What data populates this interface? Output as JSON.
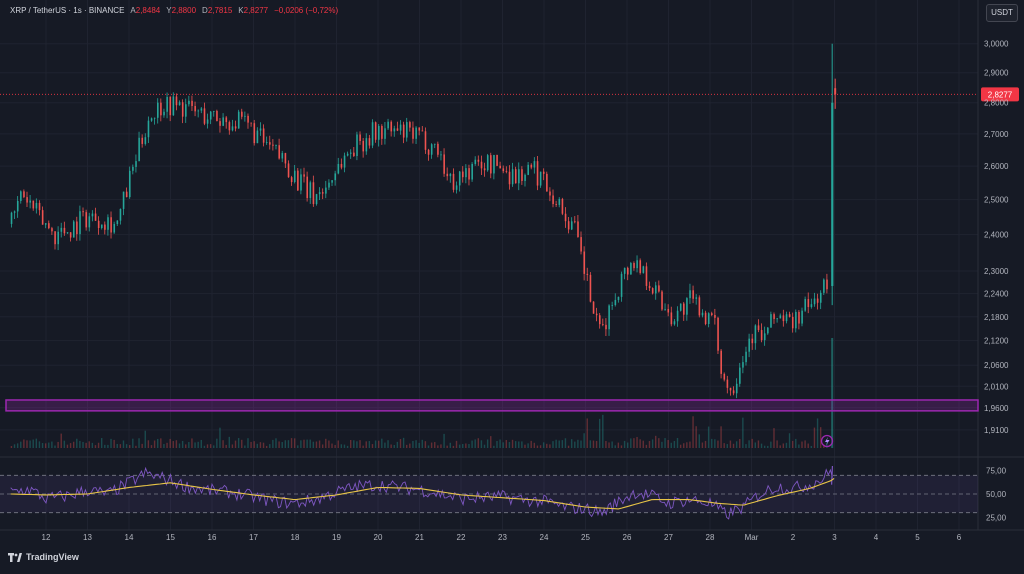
{
  "header": {
    "symbol": "XRP / TetherUS · 1s · BINANCE",
    "open_label": "A",
    "open_value": "2,8484",
    "high_label": "Y",
    "high_value": "2,8800",
    "low_label": "D",
    "low_value": "2,7815",
    "close_label": "K",
    "close_value": "2,8277",
    "change": "−0,0206 (−0,72%)"
  },
  "currency_button": "USDT",
  "brand": {
    "name": "TradingView"
  },
  "colors": {
    "background": "#161a25",
    "bull": "#26a69a",
    "bear": "#ef5350",
    "support_band": "#9c27b0",
    "rsi_line": "#7e57c2",
    "rsi_ma": "#e8c547",
    "grid": "#1f2330",
    "price_tag": "#f23645"
  },
  "chart_data": {
    "type": "candlestick",
    "symbol": "XRP / TetherUS",
    "interval": "1s",
    "exchange": "BINANCE",
    "current_price": "2,8277",
    "price_axis": {
      "scale": "log",
      "range": [
        1.87,
        3.07
      ],
      "ticks": [
        1.91,
        1.96,
        2.01,
        2.06,
        2.12,
        2.18,
        2.24,
        2.3,
        2.4,
        2.5,
        2.6,
        2.7,
        2.8,
        2.9,
        3.0
      ],
      "tick_labels": [
        "1,9100",
        "1,9600",
        "2,0100",
        "2,0600",
        "2,1200",
        "2,1800",
        "2,2400",
        "2,3000",
        "2,4000",
        "2,5000",
        "2,6000",
        "2,7000",
        "2,8000",
        "2,9000",
        "3,0000"
      ]
    },
    "time_axis": {
      "tick_labels": [
        "12",
        "13",
        "14",
        "15",
        "16",
        "17",
        "18",
        "19",
        "20",
        "21",
        "22",
        "23",
        "24",
        "25",
        "26",
        "27",
        "28",
        "Mar",
        "2",
        "3",
        "4",
        "5",
        "6"
      ],
      "tick_days": [
        12,
        13,
        14,
        15,
        16,
        17,
        18,
        19,
        20,
        21,
        22,
        23,
        24,
        25,
        26,
        27,
        28,
        29,
        30,
        31,
        32,
        33,
        34
      ]
    },
    "price_path": [
      [
        11.15,
        2.43
      ],
      [
        11.4,
        2.52
      ],
      [
        11.8,
        2.45
      ],
      [
        12.2,
        2.4
      ],
      [
        12.6,
        2.42
      ],
      [
        12.9,
        2.45
      ],
      [
        13.3,
        2.45
      ],
      [
        13.7,
        2.43
      ],
      [
        14.1,
        2.6
      ],
      [
        14.45,
        2.75
      ],
      [
        14.8,
        2.8
      ],
      [
        15.2,
        2.79
      ],
      [
        15.6,
        2.77
      ],
      [
        16.0,
        2.75
      ],
      [
        16.5,
        2.74
      ],
      [
        16.9,
        2.72
      ],
      [
        17.3,
        2.66
      ],
      [
        17.7,
        2.62
      ],
      [
        18.1,
        2.55
      ],
      [
        18.4,
        2.51
      ],
      [
        18.7,
        2.53
      ],
      [
        19.0,
        2.6
      ],
      [
        19.4,
        2.66
      ],
      [
        19.8,
        2.7
      ],
      [
        20.2,
        2.71
      ],
      [
        20.7,
        2.7
      ],
      [
        21.1,
        2.68
      ],
      [
        21.45,
        2.65
      ],
      [
        21.7,
        2.55
      ],
      [
        22.1,
        2.58
      ],
      [
        22.5,
        2.61
      ],
      [
        22.9,
        2.6
      ],
      [
        23.3,
        2.57
      ],
      [
        23.7,
        2.59
      ],
      [
        24.05,
        2.55
      ],
      [
        24.4,
        2.47
      ],
      [
        24.7,
        2.42
      ],
      [
        25.0,
        2.28
      ],
      [
        25.3,
        2.13
      ],
      [
        25.55,
        2.19
      ],
      [
        25.8,
        2.27
      ],
      [
        26.1,
        2.33
      ],
      [
        26.4,
        2.3
      ],
      [
        26.8,
        2.22
      ],
      [
        27.1,
        2.18
      ],
      [
        27.5,
        2.22
      ],
      [
        27.8,
        2.2
      ],
      [
        28.1,
        2.15
      ],
      [
        28.3,
        2.03
      ],
      [
        28.5,
        2.0
      ],
      [
        28.7,
        2.07
      ],
      [
        29.0,
        2.14
      ],
      [
        29.3,
        2.13
      ],
      [
        29.6,
        2.19
      ],
      [
        29.9,
        2.16
      ],
      [
        30.2,
        2.19
      ],
      [
        30.5,
        2.22
      ],
      [
        30.7,
        2.26
      ],
      [
        30.85,
        2.25
      ],
      [
        30.9,
        2.6
      ],
      [
        30.95,
        2.82
      ],
      [
        31.0,
        2.8277
      ]
    ],
    "spike": {
      "day": 30.92,
      "high": 3.0,
      "low": 2.21,
      "last_close": 2.8277
    },
    "support_zone": [
      1.953,
      1.978
    ],
    "volume_spike_days": [
      25.0,
      25.35,
      27.6,
      28.25,
      28.75,
      30.6,
      30.93
    ],
    "rsi": {
      "levels": [
        30,
        50,
        70
      ],
      "tick_labels": [
        "25,00",
        "50,00",
        "75,00"
      ],
      "range": [
        20,
        80
      ],
      "path": [
        [
          11.15,
          52
        ],
        [
          11.6,
          55
        ],
        [
          12.0,
          45
        ],
        [
          12.5,
          48
        ],
        [
          13.0,
          54
        ],
        [
          13.5,
          50
        ],
        [
          14.0,
          62
        ],
        [
          14.4,
          72
        ],
        [
          14.9,
          66
        ],
        [
          15.4,
          58
        ],
        [
          15.9,
          54
        ],
        [
          16.4,
          52
        ],
        [
          16.9,
          48
        ],
        [
          17.5,
          42
        ],
        [
          18.0,
          40
        ],
        [
          18.5,
          44
        ],
        [
          19.0,
          52
        ],
        [
          19.5,
          58
        ],
        [
          20.0,
          60
        ],
        [
          20.5,
          57
        ],
        [
          21.0,
          55
        ],
        [
          21.5,
          50
        ],
        [
          22.0,
          45
        ],
        [
          22.5,
          46
        ],
        [
          23.0,
          47
        ],
        [
          23.5,
          44
        ],
        [
          24.0,
          42
        ],
        [
          24.5,
          36
        ],
        [
          25.0,
          34
        ],
        [
          25.4,
          30
        ],
        [
          25.8,
          42
        ],
        [
          26.2,
          52
        ],
        [
          26.6,
          48
        ],
        [
          27.0,
          40
        ],
        [
          27.5,
          44
        ],
        [
          28.0,
          40
        ],
        [
          28.4,
          28
        ],
        [
          28.8,
          36
        ],
        [
          29.2,
          50
        ],
        [
          29.6,
          58
        ],
        [
          30.0,
          56
        ],
        [
          30.4,
          60
        ],
        [
          30.7,
          66
        ],
        [
          30.9,
          74
        ],
        [
          31.0,
          72
        ]
      ],
      "ma_path": [
        [
          11.15,
          50
        ],
        [
          12.0,
          49
        ],
        [
          13.0,
          50
        ],
        [
          14.0,
          57
        ],
        [
          15.0,
          62
        ],
        [
          16.0,
          55
        ],
        [
          17.0,
          49
        ],
        [
          18.0,
          44
        ],
        [
          19.0,
          49
        ],
        [
          20.0,
          57
        ],
        [
          21.0,
          56
        ],
        [
          22.0,
          49
        ],
        [
          23.0,
          46
        ],
        [
          24.0,
          43
        ],
        [
          25.0,
          36
        ],
        [
          25.8,
          34
        ],
        [
          26.6,
          44
        ],
        [
          27.5,
          44
        ],
        [
          28.2,
          40
        ],
        [
          28.8,
          38
        ],
        [
          29.6,
          48
        ],
        [
          30.4,
          56
        ],
        [
          30.9,
          64
        ],
        [
          31.0,
          67
        ]
      ]
    }
  }
}
